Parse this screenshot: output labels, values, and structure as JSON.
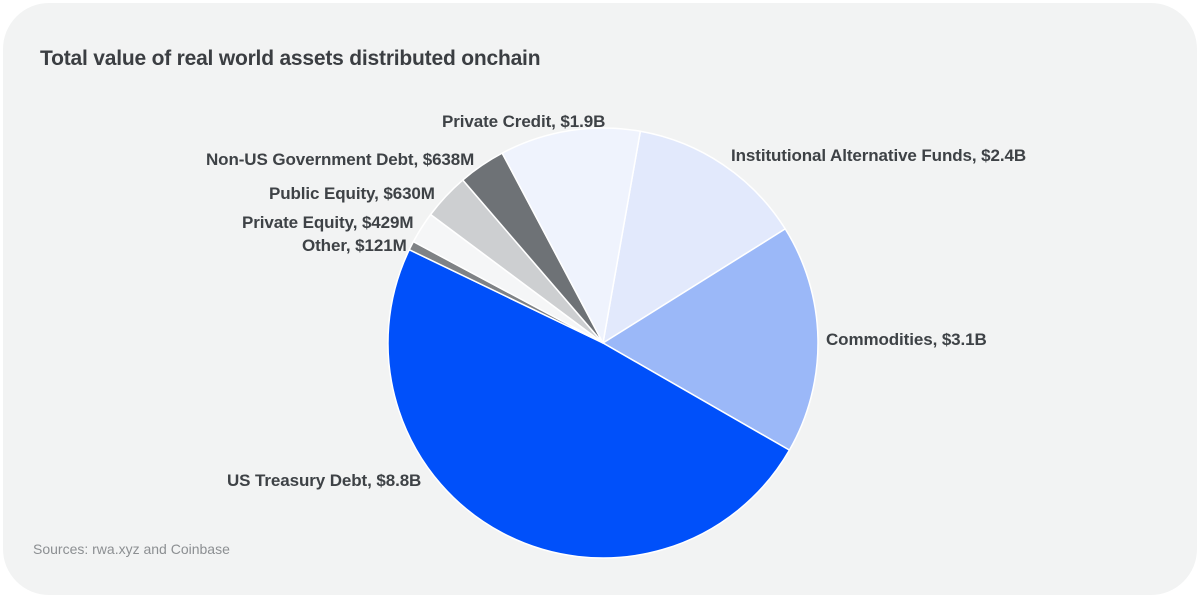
{
  "page": {
    "background_color": "#FFFFFF",
    "card_background_color": "#F2F3F3"
  },
  "header": {
    "title": "Total value of real world assets distributed onchain",
    "title_color": "#3B3E42"
  },
  "footer": {
    "sources": "Sources: rwa.xyz and Coinbase",
    "sources_color": "#8C8F92"
  },
  "chart_data": {
    "type": "pie",
    "title": "Total value of real world assets distributed onchain",
    "legend_position": "none",
    "labels_style": "direct-callout-labels",
    "start_angle_deg_clockwise_from_top": 10,
    "direction": "clockwise",
    "total_billions": 18.018,
    "slice_border_color": "#FFFFFF",
    "label_text_color": "#3E4246",
    "slices": [
      {
        "key": "institutional_alternative_funds",
        "name": "Institutional Alternative Funds",
        "value_label": "$2.4B",
        "value_billions": 2.4,
        "label": "Institutional Alternative Funds, $2.4B",
        "color": "#E2E9FC"
      },
      {
        "key": "commodities",
        "name": "Commodities",
        "value_label": "$3.1B",
        "value_billions": 3.1,
        "label": "Commodities, $3.1B",
        "color": "#9BB8F8"
      },
      {
        "key": "us_treasury_debt",
        "name": "US Treasury Debt",
        "value_label": "$8.8B",
        "value_billions": 8.8,
        "label": "US Treasury Debt, $8.8B",
        "color": "#0050FA"
      },
      {
        "key": "other",
        "name": "Other",
        "value_label": "$121M",
        "value_billions": 0.121,
        "label": "Other, $121M",
        "color": "#7F8285"
      },
      {
        "key": "private_equity",
        "name": "Private Equity",
        "value_label": "$429M",
        "value_billions": 0.429,
        "label": "Private Equity, $429M",
        "color": "#F5F6F7"
      },
      {
        "key": "public_equity",
        "name": "Public Equity",
        "value_label": "$630M",
        "value_billions": 0.63,
        "label": "Public Equity, $630M",
        "color": "#CDCFD1"
      },
      {
        "key": "non_us_government_debt",
        "name": "Non-US Government Debt",
        "value_label": "$638M",
        "value_billions": 0.638,
        "label": "Non-US Government Debt, $638M",
        "color": "#6E7276"
      },
      {
        "key": "private_credit",
        "name": "Private Credit",
        "value_label": "$1.9B",
        "value_billions": 1.9,
        "label": "Private Credit, $1.9B",
        "color": "#EFF3FD"
      }
    ]
  }
}
